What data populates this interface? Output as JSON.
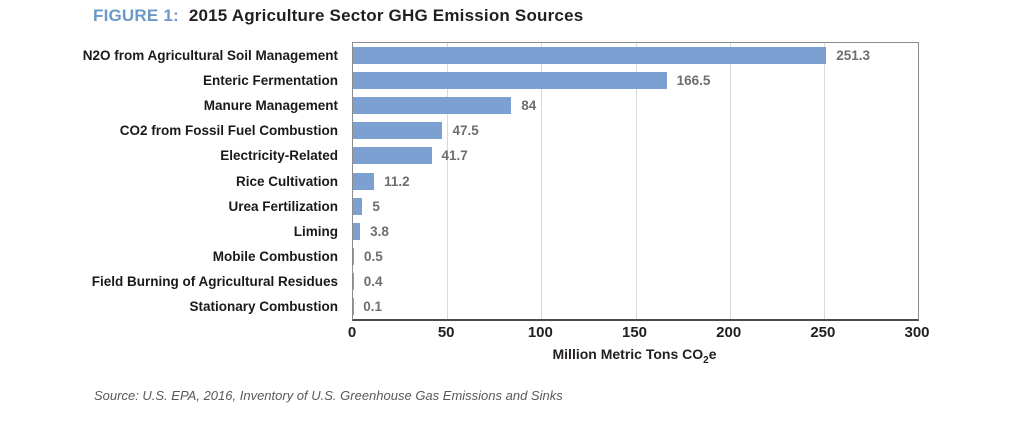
{
  "header": {
    "figure_label": "FIGURE 1:",
    "title": "2015 Agriculture Sector GHG Emission Sources"
  },
  "chart_data": {
    "type": "bar",
    "orientation": "horizontal",
    "title": "FIGURE 1: 2015 Agriculture Sector GHG Emission Sources",
    "categories": [
      "N2O from Agricultural Soil Management",
      "Enteric Fermentation",
      "Manure Management",
      "CO2 from Fossil Fuel Combustion",
      "Electricity-Related",
      "Rice Cultivation",
      "Urea Fertilization",
      "Liming",
      "Mobile Combustion",
      "Field Burning of Agricultural Residues",
      "Stationary Combustion"
    ],
    "values": [
      251.3,
      166.5,
      84,
      47.5,
      41.7,
      11.2,
      5,
      3.8,
      0.5,
      0.4,
      0.1
    ],
    "value_labels": [
      "251.3",
      "166.5",
      "84",
      "47.5",
      "41.7",
      "11.2",
      "5",
      "3.8",
      "0.5",
      "0.4",
      "0.1"
    ],
    "xlabel": "Million Metric Tons CO2e",
    "xlabel_prefix": "Million Metric Tons CO",
    "xlabel_sub": "2",
    "xlabel_suffix": "e",
    "xlim": [
      0,
      300
    ],
    "xticks": [
      0,
      50,
      100,
      150,
      200,
      250,
      300
    ],
    "grid": "vertical",
    "legend": "none",
    "bar_color": "#7ca0d2"
  },
  "footer": {
    "source": "Source: U.S. EPA, 2016, Inventory of U.S. Greenhouse Gas Emissions and Sinks"
  },
  "colors": {
    "figure_label_blue": "#6b99c7",
    "title_dark": "#231f20",
    "bar_blue": "#7ca0d2",
    "value_gray": "#6d6e71",
    "gridline": "#d7dbe0",
    "frame_gray": "#8c8c8c",
    "source_gray": "#58595b"
  }
}
